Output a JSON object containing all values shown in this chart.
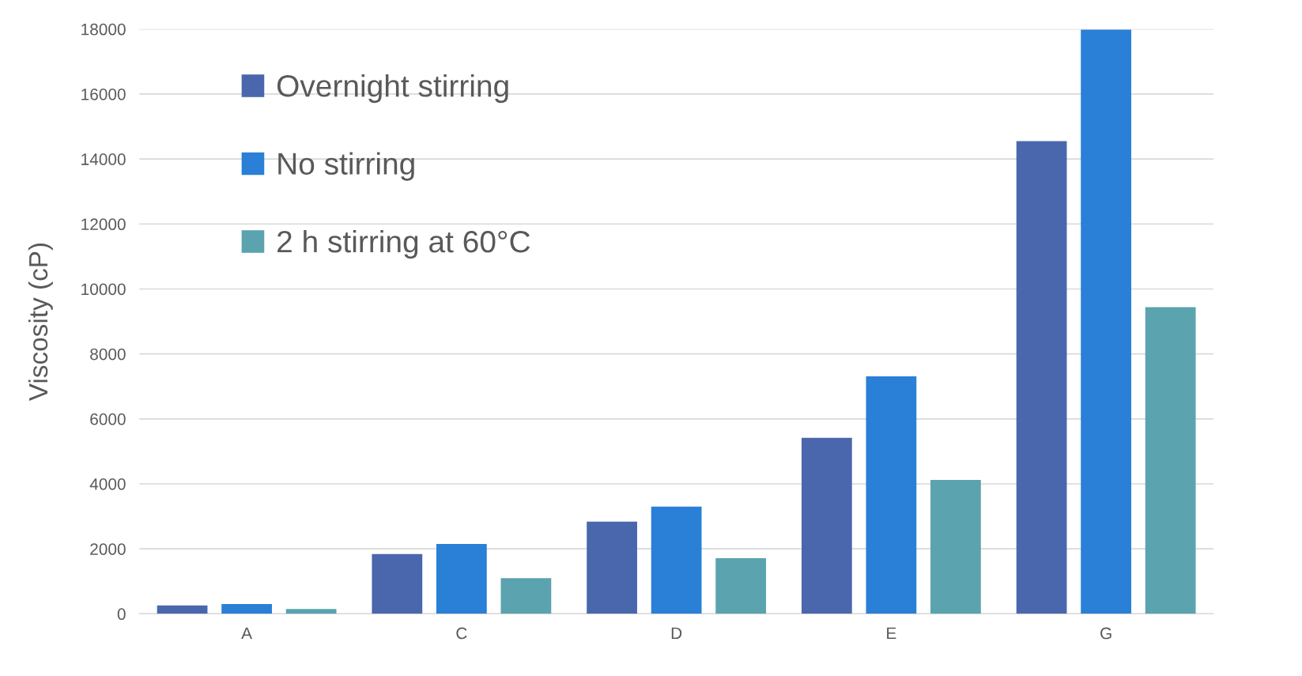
{
  "chart_data": {
    "type": "bar",
    "ylabel": "Viscosity (cP)",
    "categories": [
      "A",
      "C",
      "D",
      "E",
      "G"
    ],
    "series": [
      {
        "name": "Overnight stirring",
        "color": "#4a67ad",
        "values": [
          260,
          1840,
          2840,
          5420,
          14550
        ]
      },
      {
        "name": "No stirring",
        "color": "#2a7fd6",
        "values": [
          300,
          2150,
          3300,
          7310,
          17980
        ]
      },
      {
        "name": "2 h stirring at 60°C",
        "color": "#5ba3ae",
        "values": [
          150,
          1100,
          1710,
          4120,
          9440
        ]
      }
    ],
    "ylim": [
      0,
      18000
    ],
    "yticks": [
      0,
      2000,
      4000,
      6000,
      8000,
      10000,
      12000,
      14000,
      16000,
      18000
    ],
    "grid": "y",
    "legend": "top left"
  }
}
